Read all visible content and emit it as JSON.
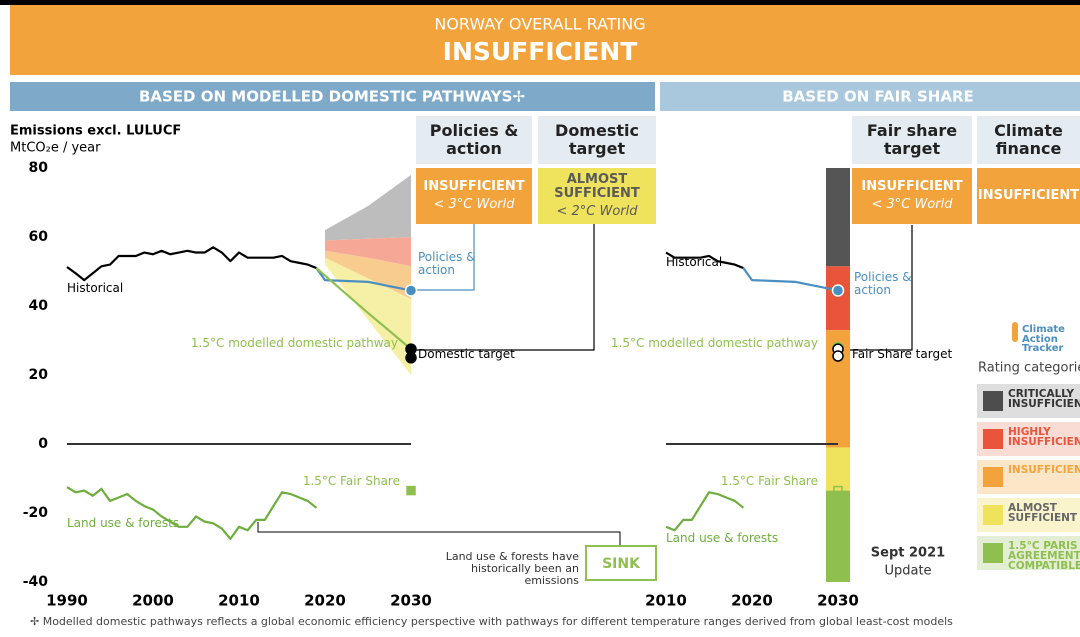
{
  "header": {
    "subtitle": "NORWAY OVERALL RATING",
    "title": "INSUFFICIENT"
  },
  "sections": [
    "BASED ON MODELLED DOMESTIC PATHWAYS✢",
    "BASED ON FAIR SHARE"
  ],
  "ratings": [
    {
      "heading": "Policies & action",
      "rating": "INSUFFICIENT",
      "world": "< 3°C World",
      "color": "#f2a33c",
      "text_color": "#ffffff"
    },
    {
      "heading": "Domestic target",
      "rating": "ALMOST SUFFICIENT",
      "world": "< 2°C World",
      "color": "#efe25d",
      "text_color": "#5a5a5a"
    },
    {
      "heading": "Fair share target",
      "rating": "INSUFFICIENT",
      "world": "< 3°C World",
      "color": "#f2a33c",
      "text_color": "#ffffff"
    },
    {
      "heading": "Climate finance",
      "rating": "INSUFFICIENT",
      "color": "#f2a33c",
      "text_color": "#ffffff"
    }
  ],
  "chart_data": [
    {
      "type": "line",
      "y_label": "Emissions excl. LULUCF",
      "y_unit": "MtCO₂e / year",
      "xlim": [
        1990,
        2030
      ],
      "ylim": [
        -40,
        80
      ],
      "xticks": [
        1990,
        2000,
        2010,
        2020,
        2030
      ],
      "yticks": [
        -40,
        -20,
        0,
        20,
        40,
        60,
        80
      ],
      "bands": [
        {
          "color": "#bdbdbd",
          "x": [
            2020,
            2025,
            2030
          ],
          "upper": [
            62,
            69,
            78
          ],
          "lower": [
            59,
            59.5,
            60
          ]
        },
        {
          "color": "#f6a897",
          "x": [
            2020,
            2025,
            2030
          ],
          "upper": [
            59,
            59.5,
            60
          ],
          "lower": [
            56,
            54,
            51.5
          ]
        },
        {
          "color": "#f8cb8e",
          "x": [
            2020,
            2025,
            2030
          ],
          "upper": [
            56,
            54,
            51.5
          ],
          "lower": [
            54,
            48,
            42
          ]
        },
        {
          "color": "#f6efa6",
          "x": [
            2020,
            2025,
            2030
          ],
          "upper": [
            54,
            48,
            42
          ],
          "lower": [
            52,
            36,
            20
          ]
        }
      ],
      "series": [
        {
          "name": "Historical",
          "color": "#000000",
          "style": "line",
          "x": [
            1990,
            1991,
            1992,
            1993,
            1994,
            1995,
            1996,
            1997,
            1998,
            1999,
            2000,
            2001,
            2002,
            2003,
            2004,
            2005,
            2006,
            2007,
            2008,
            2009,
            2010,
            2011,
            2012,
            2013,
            2014,
            2015,
            2016,
            2017,
            2018,
            2019
          ],
          "values": [
            51.3,
            49.5,
            47.5,
            49.5,
            51.5,
            52,
            54.5,
            54.5,
            54.5,
            55.5,
            55,
            56,
            55,
            55.5,
            56,
            55.5,
            55.5,
            57,
            55.5,
            53,
            55.5,
            54,
            54,
            54,
            54,
            54.5,
            53,
            52.5,
            52,
            51
          ]
        },
        {
          "name": "Land use & forests",
          "color": "#6fae3e",
          "style": "line",
          "x": [
            1990,
            1991,
            1992,
            1993,
            1994,
            1995,
            1996,
            1997,
            1998,
            1999,
            2000,
            2001,
            2002,
            2003,
            2004,
            2005,
            2006,
            2007,
            2008,
            2009,
            2010,
            2011,
            2012,
            2013,
            2014,
            2015,
            2016,
            2017,
            2018,
            2019
          ],
          "values": [
            -12.5,
            -14,
            -13.5,
            -15,
            -13,
            -16.5,
            -15.5,
            -14.5,
            -16.5,
            -18,
            -19,
            -21,
            -22.5,
            -24,
            -24,
            -21,
            -22.5,
            -23,
            -24.5,
            -27.5,
            -24,
            -25,
            -22,
            -22,
            -18,
            -14,
            -14.5,
            -15.5,
            -16.5,
            -18.5
          ]
        },
        {
          "name": "Policies & action",
          "color": "#4a8fc0",
          "style": "line",
          "end_marker": true,
          "x": [
            2019,
            2020,
            2025,
            2030
          ],
          "values": [
            51,
            47.5,
            47,
            44.5
          ]
        },
        {
          "name": "1.5°C modelled domestic pathway",
          "color": "#8fc04f",
          "style": "line",
          "x": [
            2019,
            2025,
            2030
          ],
          "values": [
            51,
            38,
            27.5
          ]
        },
        {
          "name": "Domestic target",
          "color": "#000000",
          "style": "points",
          "x": [
            2030,
            2030
          ],
          "values": [
            27.5,
            25
          ]
        },
        {
          "name": "1.5°C Fair Share",
          "color": "#8fc04f",
          "style": "square",
          "x": [
            2030
          ],
          "values": [
            -13.5
          ]
        }
      ]
    },
    {
      "type": "line",
      "xlim": [
        2010,
        2030
      ],
      "ylim": [
        -40,
        80
      ],
      "xticks": [
        2010,
        2020,
        2030
      ],
      "rating_bar": [
        {
          "color": "#555555",
          "lower": 51.5,
          "upper": 80
        },
        {
          "color": "#e8553a",
          "lower": 33,
          "upper": 51.5
        },
        {
          "color": "#f2a33c",
          "lower": -1,
          "upper": 33
        },
        {
          "color": "#efe25d",
          "lower": -13.5,
          "upper": -1
        },
        {
          "color": "#8fc04f",
          "lower": -40,
          "upper": -13.5
        }
      ],
      "series": [
        {
          "name": "Historical",
          "color": "#000000",
          "style": "line",
          "x": [
            2010,
            2011,
            2012,
            2013,
            2014,
            2015,
            2016,
            2017,
            2018,
            2019
          ],
          "values": [
            55.5,
            54,
            54,
            54,
            54,
            54.5,
            53,
            52.5,
            52,
            51
          ]
        },
        {
          "name": "Land use & forests",
          "color": "#6fae3e",
          "style": "line",
          "x": [
            2010,
            2011,
            2012,
            2013,
            2014,
            2015,
            2016,
            2017,
            2018,
            2019
          ],
          "values": [
            -24,
            -25,
            -22,
            -22,
            -18,
            -14,
            -14.5,
            -15.5,
            -16.5,
            -18.5
          ]
        },
        {
          "name": "Policies & action",
          "color": "#4a8fc0",
          "style": "line",
          "end_marker": true,
          "x": [
            2019,
            2020,
            2025,
            2030
          ],
          "values": [
            51,
            47.5,
            47,
            44.5
          ]
        },
        {
          "name": "1.5°C modelled domestic pathway",
          "color": "#8fc04f",
          "style": "points",
          "x": [
            2030
          ],
          "values": [
            28
          ]
        },
        {
          "name": "Fair Share target",
          "color": "#ffffff",
          "stroke": "#000000",
          "style": "points",
          "x": [
            2030,
            2030
          ],
          "values": [
            27.5,
            25.5
          ]
        },
        {
          "name": "1.5°C Fair Share",
          "color": "#8fc04f",
          "style": "square",
          "x": [
            2030
          ],
          "values": [
            -13.5
          ]
        }
      ]
    }
  ],
  "annotations": {
    "sink_note": "Land use & forests have historically been an emissions",
    "sink": "SINK",
    "date": "Sept 2021",
    "update": "Update"
  },
  "legend": {
    "logo": "Climate Action Tracker",
    "title": "Rating categories",
    "items": [
      {
        "label": "CRITICALLY INSUFFICIENT",
        "color": "#4d4d4d",
        "bg": "#dedede",
        "text_color": "#333333"
      },
      {
        "label": "HIGHLY INSUFFICIENT",
        "color": "#e8553a",
        "bg": "#f9dcd4",
        "text_color": "#e8553a"
      },
      {
        "label": "INSUFFICIENT",
        "color": "#f2a33c",
        "bg": "#fce6c8",
        "text_color": "#f2a33c"
      },
      {
        "label": "ALMOST SUFFICIENT",
        "color": "#efe25d",
        "bg": "#f9f4cc",
        "text_color": "#666666"
      },
      {
        "label": "1.5°C PARIS AGREEMENT COMPATIBLE",
        "color": "#8fc04f",
        "bg": "#e3eed5",
        "text_color": "#8fc04f"
      }
    ]
  },
  "footnote": "✢  Modelled domestic pathways reflects a global economic efficiency perspective with pathways for different temperature ranges derived from global least-cost models"
}
